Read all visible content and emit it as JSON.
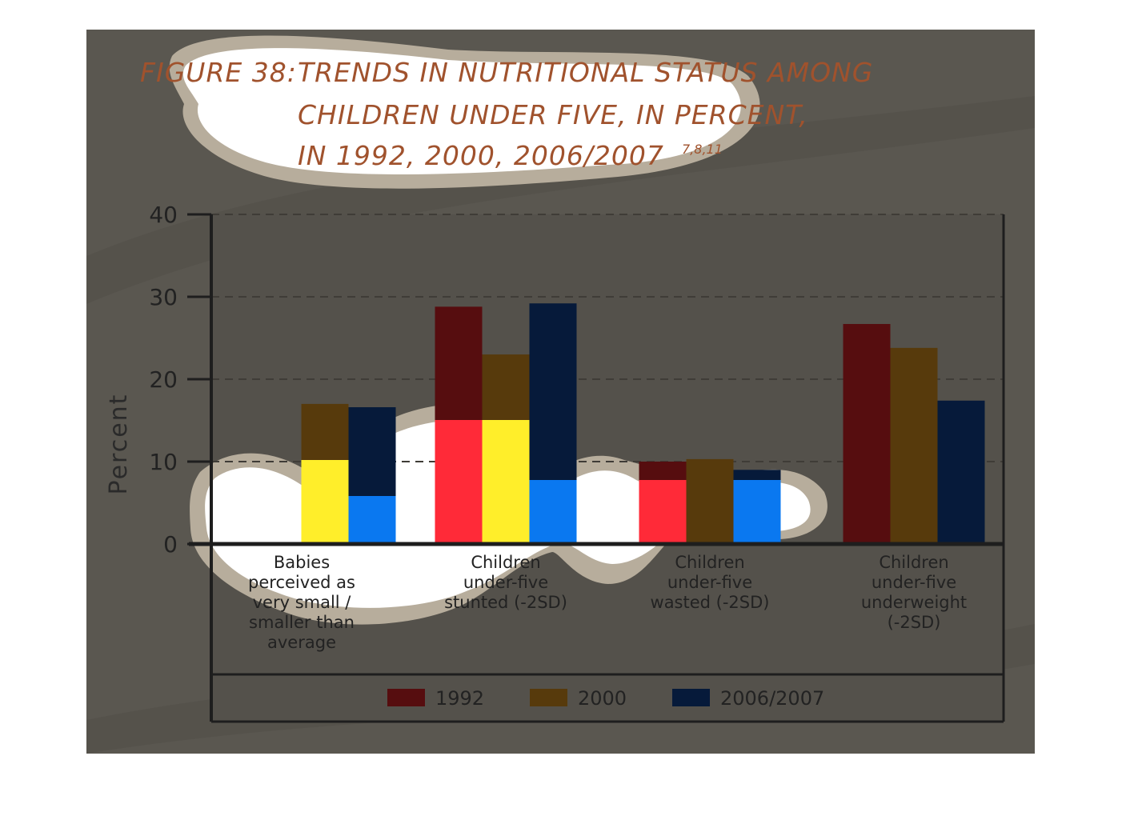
{
  "title": {
    "prefix": "FIGURE 38:",
    "lines": [
      "TRENDS IN NUTRITIONAL STATUS AMONG",
      "CHILDREN UNDER FIVE, IN PERCENT,",
      "IN 1992, 2000, 2006/2007"
    ],
    "superscript": "7,8,11"
  },
  "colors": {
    "backdrop": "#5a5750",
    "plot_bg": "#54514b",
    "title": "#a0522d",
    "1992": "#560d0f",
    "2000": "#573a0c",
    "2006/2007": "#061a3a"
  },
  "chart_data": {
    "type": "bar",
    "ylabel": "Percent",
    "xlabel": "",
    "ylim": [
      0,
      40
    ],
    "yticks": [
      0,
      10,
      20,
      30,
      40
    ],
    "grid": "dashed horizontal",
    "legend_position": "bottom",
    "categories": [
      [
        "Babies",
        "perceived as",
        "very small /",
        "smaller than",
        "average"
      ],
      [
        "Children",
        "under-five",
        "stunted (-2SD)"
      ],
      [
        "Children",
        "under-five",
        "wasted (-2SD)"
      ],
      [
        "Children",
        "under-five",
        "underweight",
        "(-2SD)"
      ]
    ],
    "series": [
      {
        "name": "1992",
        "values": [
          null,
          28.8,
          10.0,
          26.7
        ]
      },
      {
        "name": "2000",
        "values": [
          17.0,
          23.0,
          10.3,
          23.8
        ]
      },
      {
        "name": "2006/2007",
        "values": [
          16.6,
          29.2,
          9.0,
          17.4
        ]
      }
    ]
  }
}
